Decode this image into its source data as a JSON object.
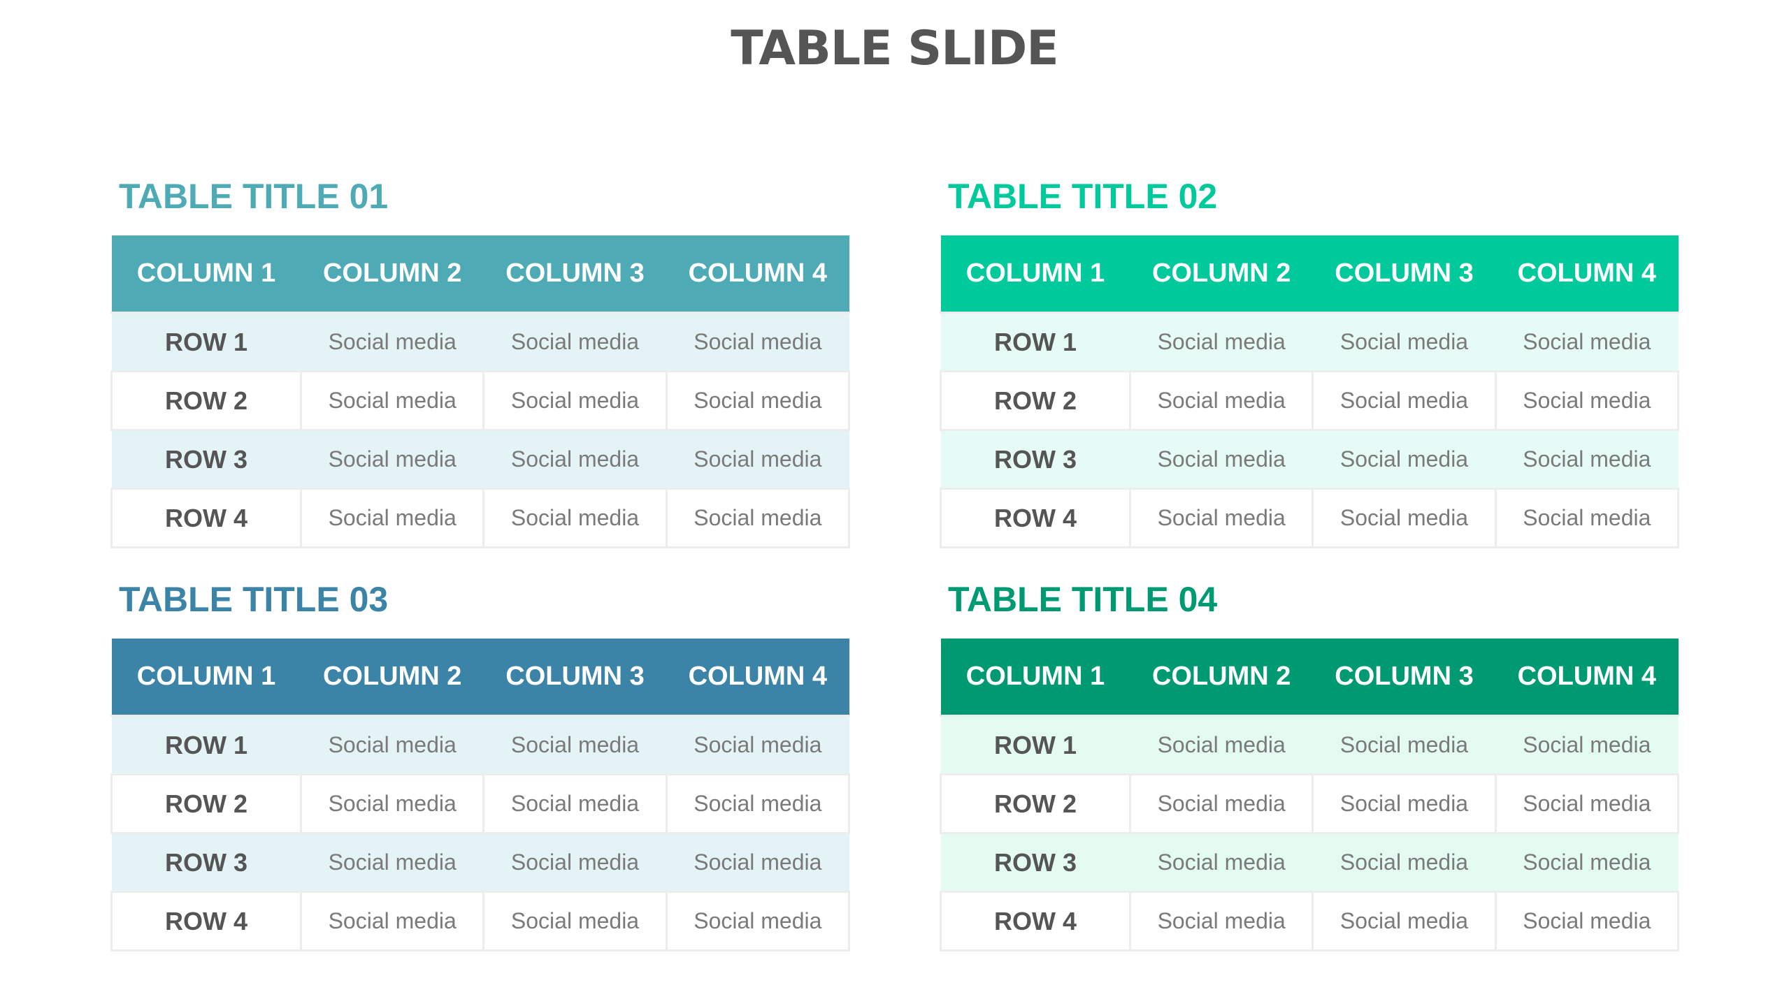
{
  "title": "TABLE SLIDE",
  "columns": [
    "COLUMN 1",
    "COLUMN 2",
    "COLUMN 3",
    "COLUMN 4"
  ],
  "tables": [
    {
      "title": "TABLE TITLE 01",
      "header_color": "#4eabb5",
      "title_color": "#4eabb5",
      "alt_row_color": "#e4f3f5",
      "rows": [
        [
          "ROW 1",
          "Social media",
          "Social media",
          "Social media"
        ],
        [
          "ROW 2",
          "Social media",
          "Social media",
          "Social media"
        ],
        [
          "ROW 3",
          "Social media",
          "Social media",
          "Social media"
        ],
        [
          "ROW 4",
          "Social media",
          "Social media",
          "Social media"
        ]
      ]
    },
    {
      "title": "TABLE TITLE 02",
      "header_color": "#00c99b",
      "title_color": "#00c99b",
      "alt_row_color": "#e6fbf5",
      "rows": [
        [
          "ROW 1",
          "Social media",
          "Social media",
          "Social media"
        ],
        [
          "ROW 2",
          "Social media",
          "Social media",
          "Social media"
        ],
        [
          "ROW 3",
          "Social media",
          "Social media",
          "Social media"
        ],
        [
          "ROW 4",
          "Social media",
          "Social media",
          "Social media"
        ]
      ]
    },
    {
      "title": "TABLE TITLE 03",
      "header_color": "#3b84a7",
      "title_color": "#3b84a7",
      "alt_row_color": "#e4f3f5",
      "rows": [
        [
          "ROW 1",
          "Social media",
          "Social media",
          "Social media"
        ],
        [
          "ROW 2",
          "Social media",
          "Social media",
          "Social media"
        ],
        [
          "ROW 3",
          "Social media",
          "Social media",
          "Social media"
        ],
        [
          "ROW 4",
          "Social media",
          "Social media",
          "Social media"
        ]
      ]
    },
    {
      "title": "TABLE TITLE 04",
      "header_color": "#009a72",
      "title_color": "#009a72",
      "alt_row_color": "#e4fbf1",
      "rows": [
        [
          "ROW 1",
          "Social media",
          "Social media",
          "Social media"
        ],
        [
          "ROW 2",
          "Social media",
          "Social media",
          "Social media"
        ],
        [
          "ROW 3",
          "Social media",
          "Social media",
          "Social media"
        ],
        [
          "ROW 4",
          "Social media",
          "Social media",
          "Social media"
        ]
      ]
    }
  ]
}
